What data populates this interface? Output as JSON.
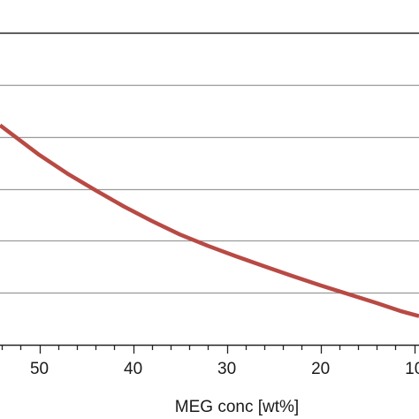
{
  "chart_data": {
    "type": "line",
    "title": "",
    "xlabel": "MEG conc [wt%]",
    "ylabel": "",
    "x_reversed": true,
    "xlim": [
      54.2,
      9.5
    ],
    "x_ticks": [
      50,
      40,
      30,
      20
    ],
    "x_tick_labels": [
      "50",
      "40",
      "30",
      "20"
    ],
    "x_minor_step": 2,
    "ylim": [
      0,
      6
    ],
    "y_gridlines": [
      1,
      2,
      3,
      4,
      5,
      6
    ],
    "grid": true,
    "legend": "none",
    "series": [
      {
        "color": "#b84a44",
        "x": [
          54.2,
          50,
          47,
          44,
          41,
          38,
          35,
          32,
          29,
          26,
          23,
          20,
          17,
          14,
          11.5,
          9.5
        ],
        "y": [
          4.22,
          3.65,
          3.29,
          2.97,
          2.66,
          2.38,
          2.12,
          1.9,
          1.7,
          1.51,
          1.32,
          1.14,
          0.97,
          0.8,
          0.65,
          0.55
        ]
      }
    ]
  }
}
